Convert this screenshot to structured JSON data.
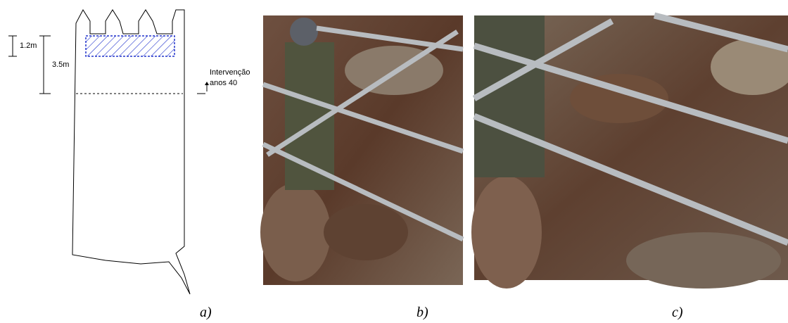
{
  "diagram": {
    "dimensions": [
      "1.2m",
      "3.5m"
    ],
    "annotation": [
      "Intervenção",
      "anos 40"
    ]
  },
  "panels": [
    "a)",
    "b)",
    "c)"
  ]
}
